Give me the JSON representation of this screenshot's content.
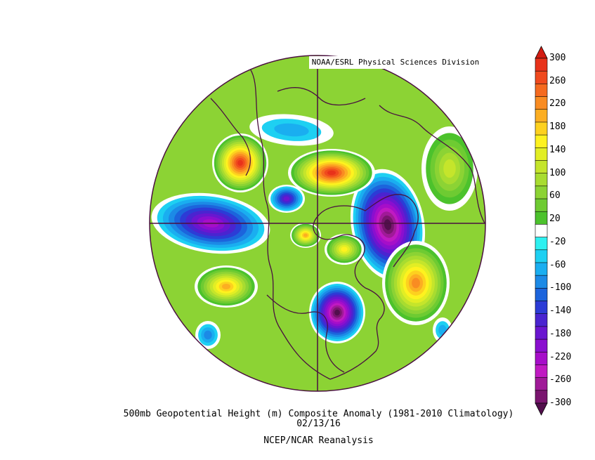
{
  "credit": "NOAA/ESRL Physical Sciences Division",
  "title_line1": "500mb Geopotential Height (m) Composite Anomaly (1981-2010 Climatology)",
  "title_line2": "02/13/16",
  "title_line3": "NCEP/NCAR Reanalysis",
  "colorbar": {
    "labels": [
      "300",
      "260",
      "220",
      "180",
      "140",
      "100",
      "60",
      "20",
      "-20",
      "-60",
      "-100",
      "-140",
      "-180",
      "-220",
      "-260",
      "-300"
    ],
    "bins": [
      {
        "range": "above 280",
        "color": "#d21c12"
      },
      {
        "range": "260 to 280",
        "color": "#e8321a"
      },
      {
        "range": "240 to 260",
        "color": "#f04a1e"
      },
      {
        "range": "220 to 240",
        "color": "#f56a1f"
      },
      {
        "range": "200 to 220",
        "color": "#f98c22"
      },
      {
        "range": "180 to 200",
        "color": "#fcae22"
      },
      {
        "range": "160 to 180",
        "color": "#fdd11f"
      },
      {
        "range": "140 to 160",
        "color": "#fef21f"
      },
      {
        "range": "120 to 140",
        "color": "#e2ee24"
      },
      {
        "range": "100 to 120",
        "color": "#c5e52b"
      },
      {
        "range": "80 to 100",
        "color": "#a8dc30"
      },
      {
        "range": "60 to 80",
        "color": "#8cd334"
      },
      {
        "range": "40 to 60",
        "color": "#6ecb32"
      },
      {
        "range": "20 to 40",
        "color": "#4cc22c"
      },
      {
        "range": "-20 to 20",
        "color": "#ffffff"
      },
      {
        "range": "-40 to -20",
        "color": "#2ef0f0"
      },
      {
        "range": "-60 to -40",
        "color": "#1ed0f2"
      },
      {
        "range": "-80 to -60",
        "color": "#1aaef0"
      },
      {
        "range": "-100 to -80",
        "color": "#1c8ae6"
      },
      {
        "range": "-120 to -100",
        "color": "#1c64dc"
      },
      {
        "range": "-140 to -120",
        "color": "#2c3cd6"
      },
      {
        "range": "-160 to -140",
        "color": "#4a24d0"
      },
      {
        "range": "-180 to -160",
        "color": "#6a16d0"
      },
      {
        "range": "-200 to -180",
        "color": "#8a0fcf"
      },
      {
        "range": "-220 to -200",
        "color": "#a60ec9"
      },
      {
        "range": "-240 to -220",
        "color": "#c01ac2"
      },
      {
        "range": "-260 to -240",
        "color": "#a01a98"
      },
      {
        "range": "-280 to -260",
        "color": "#7a156f"
      },
      {
        "range": "below -280",
        "color": "#520f4c"
      }
    ]
  },
  "map": {
    "projection": "north polar stereographic",
    "background_anomaly_color": "#8cd334",
    "coastline_color": "#4a1040",
    "anomaly_centers": [
      {
        "region": "Alaska / Bering",
        "sign": "positive",
        "approx_peak_m": 260
      },
      {
        "region": "Greenland / Arctic",
        "sign": "positive",
        "approx_peak_m": 260
      },
      {
        "region": "Central Pacific",
        "sign": "negative",
        "approx_peak_m": -200
      },
      {
        "region": "Scandinavia / Barents",
        "sign": "negative",
        "approx_peak_m": -280
      },
      {
        "region": "Eastern North America",
        "sign": "negative",
        "approx_peak_m": -280
      },
      {
        "region": "Central Canada",
        "sign": "negative",
        "approx_peak_m": -260
      },
      {
        "region": "NE Pacific",
        "sign": "positive",
        "approx_peak_m": 200
      },
      {
        "region": "North Atlantic / Europe",
        "sign": "positive",
        "approx_peak_m": 200
      }
    ]
  }
}
